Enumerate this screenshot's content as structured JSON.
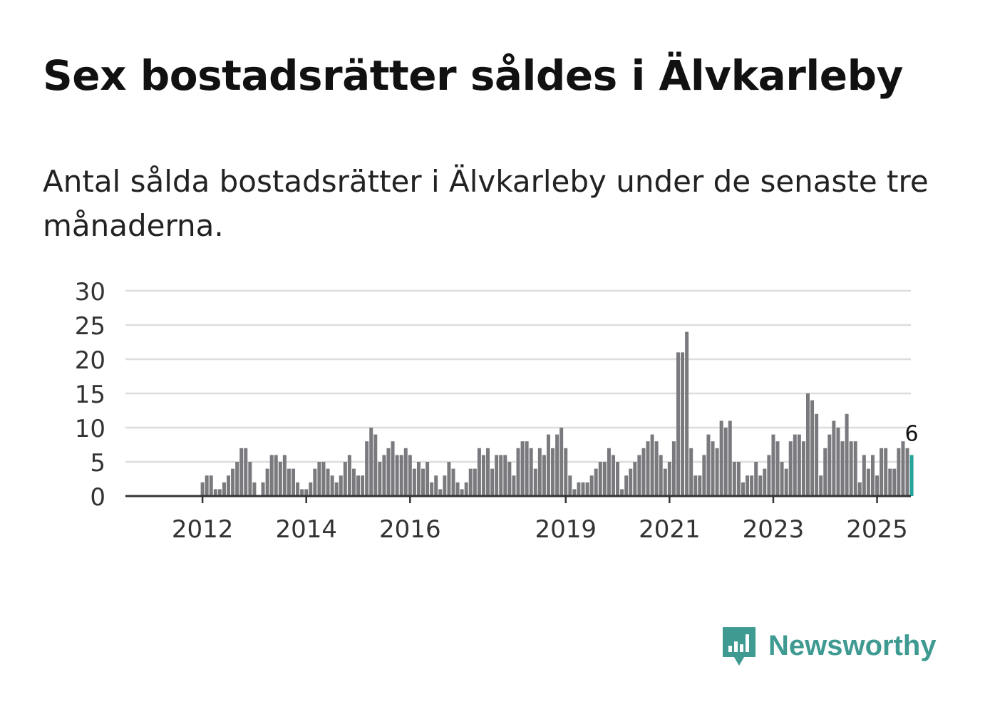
{
  "title": "Sex bostadsrätter såldes i Älvkarleby",
  "subtitle": "Antal sålda bostadsrätter i Älvkarleby under de senaste tre månaderna.",
  "brand": {
    "name": "Newsworthy",
    "icon": "newsworthy-logo-icon",
    "color": "#3f9a92"
  },
  "chart_data": {
    "type": "bar",
    "title": "Sex bostadsrätter såldes i Älvkarleby",
    "xlabel": "",
    "ylabel": "",
    "ylim": [
      0,
      30
    ],
    "yticks": [
      "0",
      "5",
      "10",
      "15",
      "20",
      "25",
      "30"
    ],
    "x_start": 2011.25,
    "step_years": 0.0833333,
    "xticks": [
      {
        "label": "2012",
        "value": 2012
      },
      {
        "label": "2014",
        "value": 2014
      },
      {
        "label": "2016",
        "value": 2016
      },
      {
        "label": "2019",
        "value": 2019
      },
      {
        "label": "2021",
        "value": 2021
      },
      {
        "label": "2023",
        "value": 2023
      },
      {
        "label": "2025",
        "value": 2025
      }
    ],
    "values": [
      0,
      0,
      0,
      0,
      0,
      0,
      0,
      0,
      0,
      2,
      3,
      3,
      1,
      1,
      2,
      3,
      4,
      5,
      7,
      7,
      5,
      2,
      0,
      2,
      4,
      6,
      6,
      5,
      6,
      4,
      4,
      2,
      1,
      1,
      2,
      4,
      5,
      5,
      4,
      3,
      2,
      3,
      5,
      6,
      4,
      3,
      3,
      8,
      10,
      9,
      5,
      6,
      7,
      8,
      6,
      6,
      7,
      6,
      4,
      5,
      4,
      5,
      2,
      3,
      1,
      3,
      5,
      4,
      2,
      1,
      2,
      4,
      4,
      7,
      6,
      7,
      4,
      6,
      6,
      6,
      5,
      3,
      7,
      8,
      8,
      7,
      4,
      7,
      6,
      9,
      7,
      9,
      10,
      7,
      3,
      1,
      2,
      2,
      2,
      3,
      4,
      5,
      5,
      7,
      6,
      5,
      1,
      3,
      4,
      5,
      6,
      7,
      8,
      9,
      8,
      6,
      4,
      5,
      8,
      21,
      21,
      24,
      7,
      3,
      3,
      6,
      9,
      8,
      7,
      11,
      10,
      11,
      5,
      5,
      2,
      3,
      3,
      5,
      3,
      4,
      6,
      9,
      8,
      5,
      4,
      8,
      9,
      9,
      8,
      15,
      14,
      12,
      3,
      7,
      9,
      11,
      10,
      8,
      12,
      8,
      8,
      2,
      6,
      4,
      6,
      3,
      7,
      7,
      4,
      4,
      7,
      8,
      7,
      6
    ],
    "highlight_last": true,
    "last_label": "6",
    "colors": {
      "bar": "#7a797e",
      "highlight": "#27a39b",
      "grid": "#dddddd",
      "axis": "#333333"
    }
  }
}
